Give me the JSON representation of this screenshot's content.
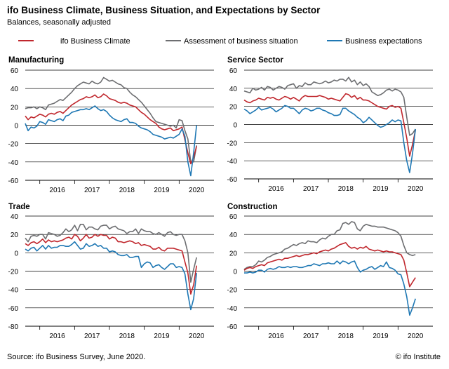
{
  "header": {
    "title": "ifo Business Climate, Business Situation, and Expectations by Sector",
    "subtitle": "Balances, seasonally adjusted"
  },
  "legend": [
    {
      "label": "ifo Business Climate",
      "color": "#c0272d"
    },
    {
      "label": "Assessment of business situation",
      "color": "#6d6e71"
    },
    {
      "label": "Business expectations",
      "color": "#1f78b4"
    }
  ],
  "footer": {
    "source": "Source: ifo Business Survey, June 2020.",
    "copyright": "© ifo Institute"
  },
  "chart_data": [
    {
      "type": "line",
      "title": "Manufacturing",
      "ylim": [
        -60,
        60
      ],
      "yticks": [
        -60,
        -40,
        -20,
        0,
        20,
        40,
        60
      ],
      "xlabels": [
        "2016",
        "2017",
        "2018",
        "2019",
        "2020"
      ],
      "x_start": "2015-08",
      "grid": true,
      "series": [
        {
          "name": "ifo Business Climate",
          "color": "#c0272d",
          "values": [
            10,
            6,
            9,
            8,
            10,
            12,
            11,
            9,
            12,
            13,
            12,
            14,
            15,
            13,
            16,
            19,
            22,
            24,
            26,
            28,
            29,
            31,
            30,
            31,
            33,
            30,
            31,
            34,
            32,
            29,
            28,
            27,
            25,
            24,
            25,
            24,
            22,
            21,
            20,
            17,
            14,
            12,
            9,
            6,
            4,
            2,
            -2,
            -4,
            -5,
            -4,
            -3,
            -6,
            -5,
            -4,
            -2,
            -16,
            -30,
            -42,
            -35,
            -23
          ]
        },
        {
          "name": "Assessment of business situation",
          "color": "#6d6e71",
          "values": [
            18,
            19,
            19,
            20,
            18,
            20,
            19,
            17,
            22,
            23,
            24,
            26,
            28,
            27,
            30,
            33,
            36,
            40,
            43,
            45,
            47,
            46,
            45,
            48,
            46,
            45,
            47,
            52,
            50,
            48,
            49,
            47,
            45,
            44,
            41,
            40,
            36,
            33,
            31,
            28,
            25,
            21,
            17,
            13,
            8,
            4,
            3,
            2,
            1,
            0,
            -1,
            0,
            -3,
            6,
            5,
            -6,
            -15,
            -40,
            -40,
            -22
          ]
        },
        {
          "name": "Business expectations",
          "color": "#1f78b4",
          "values": [
            2,
            -6,
            -2,
            -3,
            -1,
            4,
            3,
            1,
            6,
            5,
            4,
            6,
            7,
            5,
            10,
            11,
            14,
            15,
            16,
            17,
            17,
            18,
            17,
            19,
            21,
            18,
            16,
            17,
            15,
            11,
            8,
            6,
            5,
            4,
            6,
            7,
            3,
            3,
            2,
            -1,
            -3,
            -4,
            -5,
            -7,
            -10,
            -11,
            -12,
            -13,
            -15,
            -14,
            -13,
            -14,
            -12,
            -10,
            -4,
            -12,
            -40,
            -55,
            -30,
            0
          ]
        }
      ]
    },
    {
      "type": "line",
      "title": "Service Sector",
      "ylim": [
        -60,
        60
      ],
      "yticks": [
        -60,
        -40,
        -20,
        0,
        20,
        40,
        60
      ],
      "xlabels": [
        "2016",
        "2017",
        "2018",
        "2019",
        "2020"
      ],
      "x_start": "2015-08",
      "grid": true,
      "series": [
        {
          "name": "ifo Business Climate",
          "color": "#c0272d",
          "values": [
            27,
            25,
            24,
            26,
            27,
            29,
            28,
            27,
            30,
            29,
            30,
            28,
            27,
            29,
            31,
            30,
            28,
            30,
            28,
            26,
            30,
            32,
            31,
            31,
            31,
            31,
            32,
            31,
            30,
            28,
            29,
            28,
            27,
            26,
            30,
            34,
            33,
            30,
            32,
            28,
            30,
            27,
            27,
            26,
            24,
            22,
            20,
            19,
            18,
            17,
            20,
            21,
            19,
            20,
            18,
            2,
            -15,
            -35,
            -22,
            -6
          ]
        },
        {
          "name": "Assessment of business situation",
          "color": "#6d6e71",
          "values": [
            37,
            36,
            35,
            40,
            38,
            39,
            41,
            38,
            42,
            41,
            38,
            40,
            42,
            41,
            39,
            43,
            44,
            45,
            40,
            43,
            42,
            46,
            44,
            44,
            47,
            46,
            45,
            46,
            48,
            46,
            47,
            49,
            48,
            50,
            50,
            48,
            52,
            47,
            49,
            44,
            47,
            43,
            45,
            42,
            36,
            34,
            32,
            33,
            35,
            38,
            39,
            37,
            39,
            38,
            36,
            30,
            8,
            -12,
            -10,
            -5
          ]
        },
        {
          "name": "Business expectations",
          "color": "#1f78b4",
          "values": [
            17,
            15,
            12,
            14,
            16,
            19,
            16,
            17,
            18,
            19,
            17,
            14,
            16,
            18,
            21,
            20,
            18,
            18,
            15,
            12,
            16,
            18,
            17,
            15,
            16,
            18,
            18,
            16,
            15,
            13,
            12,
            10,
            10,
            11,
            18,
            18,
            15,
            13,
            11,
            8,
            6,
            2,
            4,
            8,
            5,
            2,
            -1,
            -3,
            -2,
            0,
            2,
            5,
            3,
            5,
            4,
            -20,
            -40,
            -53,
            -32,
            -5
          ]
        }
      ]
    },
    {
      "type": "line",
      "title": "Trade",
      "ylim": [
        -80,
        40
      ],
      "yticks": [
        -80,
        -60,
        -40,
        -20,
        0,
        20,
        40
      ],
      "xlabels": [
        "2016",
        "2017",
        "2018",
        "2019",
        "2020"
      ],
      "x_start": "2015-08",
      "grid": true,
      "series": [
        {
          "name": "ifo Business Climate",
          "color": "#c0272d",
          "values": [
            10,
            8,
            11,
            12,
            10,
            12,
            15,
            11,
            14,
            12,
            13,
            12,
            13,
            14,
            16,
            17,
            15,
            20,
            18,
            13,
            16,
            20,
            16,
            17,
            20,
            18,
            20,
            19,
            19,
            15,
            17,
            16,
            12,
            12,
            11,
            12,
            13,
            12,
            10,
            11,
            8,
            9,
            8,
            7,
            4,
            4,
            6,
            3,
            2,
            5,
            5,
            5,
            4,
            3,
            2,
            -10,
            -22,
            -45,
            -35,
            -14
          ]
        },
        {
          "name": "Assessment of business situation",
          "color": "#6d6e71",
          "values": [
            16,
            12,
            18,
            19,
            18,
            20,
            20,
            15,
            22,
            21,
            20,
            18,
            19,
            22,
            26,
            23,
            25,
            30,
            24,
            31,
            31,
            25,
            28,
            28,
            26,
            25,
            29,
            30,
            30,
            26,
            28,
            29,
            26,
            25,
            24,
            21,
            23,
            23,
            26,
            21,
            26,
            24,
            23,
            23,
            21,
            20,
            22,
            20,
            18,
            22,
            23,
            20,
            19,
            20,
            20,
            13,
            0,
            -32,
            -18,
            -5
          ]
        },
        {
          "name": "Business expectations",
          "color": "#1f78b4",
          "values": [
            4,
            2,
            5,
            6,
            2,
            5,
            8,
            4,
            8,
            5,
            6,
            6,
            8,
            8,
            7,
            7,
            9,
            12,
            8,
            4,
            5,
            10,
            7,
            8,
            10,
            7,
            8,
            5,
            5,
            1,
            2,
            1,
            -2,
            -3,
            -3,
            -2,
            -5,
            -5,
            -4,
            -4,
            -16,
            -12,
            -10,
            -11,
            -16,
            -14,
            -13,
            -16,
            -18,
            -15,
            -12,
            -12,
            -16,
            -15,
            -16,
            -23,
            -45,
            -62,
            -50,
            -22
          ]
        }
      ]
    },
    {
      "type": "line",
      "title": "Construction",
      "ylim": [
        -60,
        60
      ],
      "yticks": [
        -60,
        -40,
        -20,
        0,
        20,
        40,
        60
      ],
      "xlabels": [
        "2016",
        "2017",
        "2018",
        "2019",
        "2020"
      ],
      "x_start": "2015-08",
      "grid": true,
      "series": [
        {
          "name": "ifo Business Climate",
          "color": "#c0272d",
          "values": [
            1,
            3,
            4,
            3,
            5,
            6,
            7,
            6,
            9,
            10,
            11,
            12,
            13,
            12,
            14,
            14,
            15,
            16,
            17,
            16,
            17,
            18,
            18,
            19,
            20,
            19,
            21,
            22,
            23,
            22,
            24,
            25,
            27,
            29,
            30,
            31,
            27,
            25,
            26,
            24,
            26,
            25,
            27,
            24,
            23,
            22,
            23,
            22,
            21,
            22,
            21,
            21,
            20,
            19,
            18,
            12,
            -2,
            -17,
            -12,
            -7
          ]
        },
        {
          "name": "Assessment of business situation",
          "color": "#6d6e71",
          "values": [
            2,
            4,
            5,
            5,
            7,
            11,
            10,
            12,
            15,
            16,
            18,
            19,
            20,
            21,
            24,
            25,
            27,
            29,
            28,
            30,
            31,
            30,
            33,
            32,
            32,
            31,
            34,
            36,
            35,
            38,
            40,
            40,
            44,
            45,
            52,
            53,
            51,
            54,
            53,
            46,
            44,
            49,
            51,
            50,
            49,
            49,
            48,
            48,
            48,
            47,
            46,
            45,
            44,
            42,
            38,
            28,
            20,
            18,
            17,
            18
          ]
        },
        {
          "name": "Business expectations",
          "color": "#1f78b4",
          "values": [
            -2,
            -2,
            -1,
            -2,
            -1,
            1,
            1,
            -1,
            2,
            3,
            2,
            3,
            5,
            4,
            4,
            5,
            4,
            5,
            5,
            4,
            4,
            5,
            6,
            6,
            8,
            7,
            6,
            8,
            8,
            9,
            8,
            8,
            11,
            8,
            11,
            10,
            8,
            10,
            11,
            4,
            -1,
            1,
            2,
            4,
            5,
            2,
            4,
            6,
            5,
            10,
            4,
            3,
            1,
            -3,
            -4,
            -14,
            -28,
            -48,
            -40,
            -30
          ]
        }
      ]
    }
  ]
}
